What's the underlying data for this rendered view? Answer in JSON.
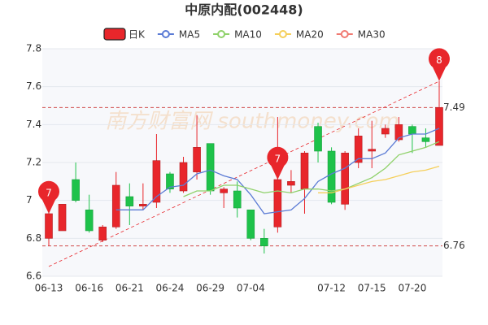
{
  "chart_data": {
    "type": "candlestick",
    "title": "中原内配(002448)",
    "watermark": "南方财富网 southmoney.com",
    "categories": [
      "06-13",
      null,
      null,
      "06-16",
      null,
      null,
      "06-21",
      null,
      null,
      "06-24",
      null,
      null,
      "06-29",
      null,
      null,
      "07-04",
      null,
      null,
      null,
      null,
      null,
      "07-12",
      null,
      null,
      "07-15",
      null,
      null,
      "07-20",
      null,
      null
    ],
    "ylim": [
      6.6,
      7.8
    ],
    "yticks": [
      6.6,
      6.8,
      7,
      7.2,
      7.4,
      7.6,
      7.8
    ],
    "grid": true,
    "ref_lines": [
      7.49,
      6.76
    ],
    "candles": {
      "name": "日K",
      "up_color": "#e8262b",
      "down_color": "#1ec24a",
      "open": [
        6.8,
        6.84,
        7.11,
        6.95,
        6.79,
        6.86,
        7.02,
        6.97,
        6.99,
        7.14,
        7.05,
        7.15,
        7.3,
        7.04,
        7.05,
        6.95,
        6.8,
        6.86,
        7.08,
        7.06,
        7.39,
        7.26,
        6.98,
        7.2,
        7.26,
        7.35,
        7.32,
        7.39,
        7.33,
        7.29
      ],
      "high": [
        6.94,
        6.98,
        7.2,
        7.03,
        6.87,
        7.15,
        7.09,
        7.09,
        7.35,
        7.15,
        7.23,
        7.45,
        7.3,
        7.07,
        7.1,
        6.95,
        6.85,
        7.44,
        7.16,
        7.26,
        7.41,
        7.28,
        7.26,
        7.38,
        7.42,
        7.4,
        7.44,
        7.4,
        7.38,
        7.63
      ],
      "low": [
        6.76,
        6.84,
        6.99,
        6.83,
        6.78,
        6.85,
        6.87,
        6.95,
        6.96,
        7.04,
        7.04,
        7.11,
        7.03,
        6.96,
        6.91,
        6.79,
        6.72,
        6.83,
        7.04,
        6.93,
        7.2,
        6.98,
        6.95,
        7.17,
        7.17,
        7.33,
        7.31,
        7.25,
        7.28,
        7.29
      ],
      "close": [
        6.93,
        6.98,
        7.0,
        6.84,
        6.86,
        7.08,
        6.97,
        6.98,
        7.21,
        7.06,
        7.2,
        7.28,
        7.05,
        7.06,
        6.96,
        6.8,
        6.76,
        7.11,
        7.1,
        7.25,
        7.26,
        6.99,
        7.25,
        7.34,
        7.27,
        7.38,
        7.4,
        7.35,
        7.31,
        7.49
      ],
      "markers": [
        "7",
        null,
        null,
        null,
        null,
        null,
        null,
        null,
        null,
        null,
        null,
        null,
        null,
        null,
        null,
        null,
        null,
        "7",
        null,
        null,
        null,
        null,
        null,
        null,
        null,
        null,
        null,
        null,
        null,
        "8"
      ],
      "marker_color": "#e8262b"
    },
    "series": [
      {
        "name": "MA5",
        "color": "#5b7bd5",
        "values": [
          null,
          null,
          null,
          null,
          null,
          6.95,
          6.95,
          6.95,
          7.02,
          7.07,
          7.08,
          7.14,
          7.16,
          7.13,
          7.11,
          7.03,
          6.93,
          6.94,
          6.95,
          7.01,
          7.1,
          7.14,
          7.17,
          7.22,
          7.22,
          7.25,
          7.33,
          7.35,
          7.35,
          7.38
        ]
      },
      {
        "name": "MA10",
        "color": "#8fd16a",
        "values": [
          null,
          null,
          null,
          null,
          null,
          null,
          null,
          null,
          null,
          null,
          7.02,
          7.05,
          7.05,
          7.08,
          7.08,
          7.06,
          7.04,
          7.05,
          7.04,
          7.06,
          7.06,
          7.05,
          7.06,
          7.09,
          7.12,
          7.17,
          7.24,
          7.26,
          7.28,
          7.31
        ]
      },
      {
        "name": "MA20",
        "color": "#f5cf5a",
        "values": [
          null,
          null,
          null,
          null,
          null,
          null,
          null,
          null,
          null,
          null,
          null,
          null,
          null,
          null,
          null,
          null,
          null,
          null,
          null,
          null,
          7.04,
          7.04,
          7.06,
          7.08,
          7.1,
          7.11,
          7.13,
          7.15,
          7.16,
          7.18
        ]
      },
      {
        "name": "MA30",
        "color": "#f07a72",
        "values": [
          null,
          null,
          null,
          null,
          null,
          null,
          null,
          null,
          null,
          null,
          null,
          null,
          null,
          null,
          null,
          null,
          null,
          null,
          null,
          null,
          null,
          null,
          null,
          null,
          null,
          null,
          null,
          null,
          null,
          null
        ]
      }
    ]
  }
}
